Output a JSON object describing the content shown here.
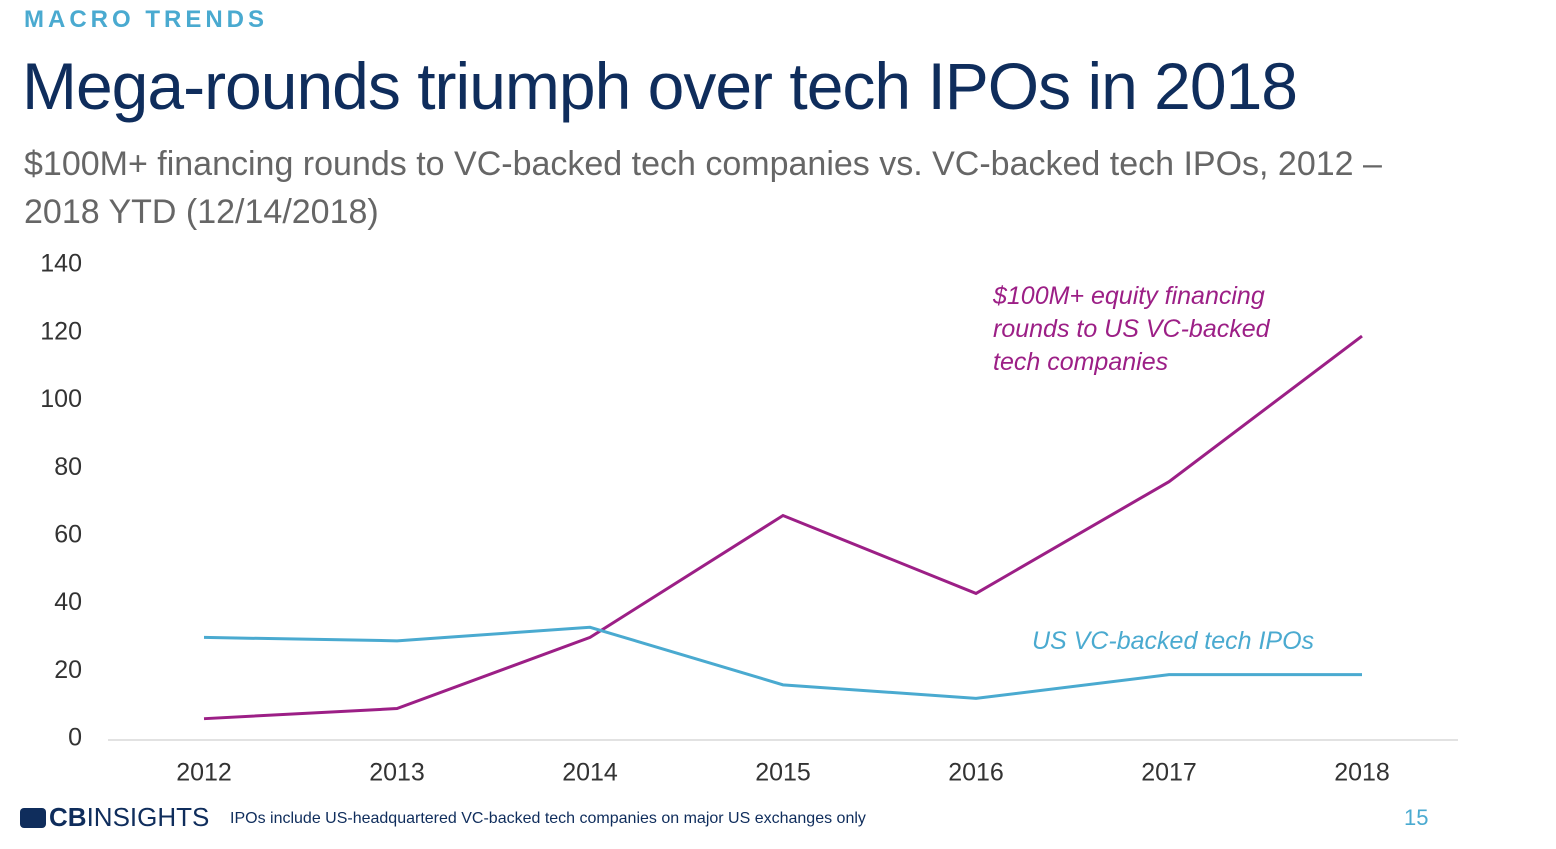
{
  "header": {
    "kicker": "MACRO TRENDS",
    "title": "Mega-rounds triumph over tech IPOs in 2018",
    "subtitle": "$100M+ financing rounds to VC-backed tech companies vs. VC-backed tech IPOs, 2012 – 2018 YTD (12/14/2018)"
  },
  "chart_data": {
    "type": "line",
    "categories": [
      "2012",
      "2013",
      "2014",
      "2015",
      "2016",
      "2017",
      "2018"
    ],
    "series": [
      {
        "name": "$100M+ equity financing rounds to US VC-backed tech companies",
        "color": "#9c1f86",
        "values": [
          6,
          9,
          30,
          66,
          43,
          76,
          119
        ]
      },
      {
        "name": "US VC-backed tech IPOs",
        "color": "#4aaad0",
        "values": [
          30,
          29,
          33,
          16,
          12,
          19,
          19
        ]
      }
    ],
    "ylim": [
      0,
      140
    ],
    "yticks": [
      0,
      20,
      40,
      60,
      80,
      100,
      120,
      140
    ],
    "grid": false
  },
  "footer": {
    "logo_bold": "CB",
    "logo_light": "INSIGHTS",
    "note": "IPOs include US-headquartered VC-backed tech companies on major US exchanges only",
    "page": "15"
  }
}
